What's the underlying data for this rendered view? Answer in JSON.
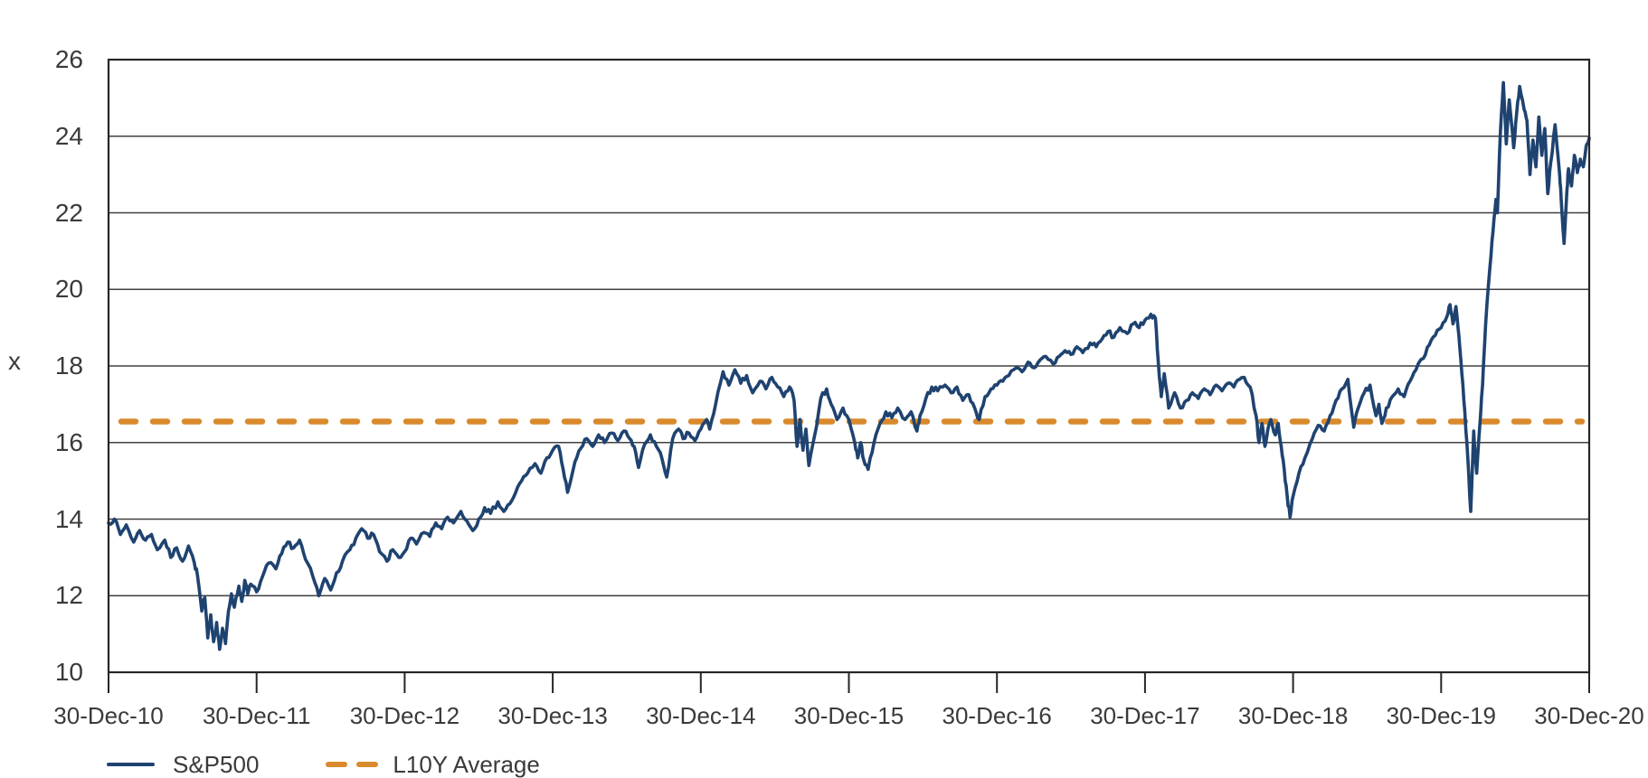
{
  "colors": {
    "series": "#1F4370",
    "average": "#D98A2D",
    "grid": "#404040",
    "border": "#262626",
    "text": "#3A3A3A",
    "background": "#FFFFFF"
  },
  "chart_data": {
    "type": "line",
    "title": "",
    "xlabel": "",
    "ylabel": "x",
    "ylim": [
      10,
      26
    ],
    "yticks": [
      10,
      12,
      14,
      16,
      18,
      20,
      22,
      24,
      26
    ],
    "x_domain": [
      0,
      10
    ],
    "x_unit": "years since 30-Dec-10",
    "xtick_labels": [
      "30-Dec-10",
      "30-Dec-11",
      "30-Dec-12",
      "30-Dec-13",
      "30-Dec-14",
      "30-Dec-15",
      "30-Dec-16",
      "30-Dec-17",
      "30-Dec-18",
      "30-Dec-19",
      "30-Dec-20"
    ],
    "grid": "horizontal",
    "legend_position": "bottom-left",
    "series": [
      {
        "name": "S&P500",
        "style": "solid",
        "color": "#1F4370",
        "points": [
          [
            0,
            13.9
          ],
          [
            0.04,
            14.0
          ],
          [
            0.08,
            13.6
          ],
          [
            0.12,
            13.85
          ],
          [
            0.17,
            13.4
          ],
          [
            0.21,
            13.7
          ],
          [
            0.25,
            13.45
          ],
          [
            0.29,
            13.6
          ],
          [
            0.33,
            13.2
          ],
          [
            0.38,
            13.45
          ],
          [
            0.42,
            13.0
          ],
          [
            0.46,
            13.25
          ],
          [
            0.5,
            12.9
          ],
          [
            0.54,
            13.3
          ],
          [
            0.58,
            12.85
          ],
          [
            0.6,
            12.55
          ],
          [
            0.63,
            11.6
          ],
          [
            0.65,
            11.95
          ],
          [
            0.67,
            10.9
          ],
          [
            0.69,
            11.5
          ],
          [
            0.71,
            10.8
          ],
          [
            0.73,
            11.3
          ],
          [
            0.75,
            10.6
          ],
          [
            0.77,
            11.15
          ],
          [
            0.79,
            10.75
          ],
          [
            0.81,
            11.6
          ],
          [
            0.83,
            12.05
          ],
          [
            0.85,
            11.7
          ],
          [
            0.88,
            12.25
          ],
          [
            0.9,
            11.85
          ],
          [
            0.92,
            12.4
          ],
          [
            0.94,
            12.05
          ],
          [
            0.96,
            12.3
          ],
          [
            1,
            12.1
          ],
          [
            1.04,
            12.5
          ],
          [
            1.08,
            12.85
          ],
          [
            1.13,
            12.7
          ],
          [
            1.17,
            13.1
          ],
          [
            1.21,
            13.4
          ],
          [
            1.25,
            13.25
          ],
          [
            1.29,
            13.45
          ],
          [
            1.33,
            12.95
          ],
          [
            1.38,
            12.5
          ],
          [
            1.42,
            12.0
          ],
          [
            1.46,
            12.45
          ],
          [
            1.5,
            12.15
          ],
          [
            1.54,
            12.6
          ],
          [
            1.58,
            12.9
          ],
          [
            1.63,
            13.2
          ],
          [
            1.67,
            13.5
          ],
          [
            1.71,
            13.75
          ],
          [
            1.75,
            13.5
          ],
          [
            1.79,
            13.6
          ],
          [
            1.83,
            13.15
          ],
          [
            1.88,
            12.9
          ],
          [
            1.92,
            13.2
          ],
          [
            1.96,
            13.0
          ],
          [
            2,
            13.15
          ],
          [
            2.04,
            13.5
          ],
          [
            2.08,
            13.35
          ],
          [
            2.13,
            13.65
          ],
          [
            2.17,
            13.55
          ],
          [
            2.21,
            13.9
          ],
          [
            2.25,
            13.75
          ],
          [
            2.29,
            14.05
          ],
          [
            2.33,
            13.9
          ],
          [
            2.38,
            14.2
          ],
          [
            2.42,
            13.95
          ],
          [
            2.46,
            13.7
          ],
          [
            2.5,
            14.0
          ],
          [
            2.54,
            14.3
          ],
          [
            2.58,
            14.15
          ],
          [
            2.63,
            14.45
          ],
          [
            2.67,
            14.2
          ],
          [
            2.71,
            14.4
          ],
          [
            2.75,
            14.7
          ],
          [
            2.79,
            15.0
          ],
          [
            2.83,
            15.2
          ],
          [
            2.88,
            15.45
          ],
          [
            2.92,
            15.2
          ],
          [
            2.96,
            15.6
          ],
          [
            3,
            15.8
          ],
          [
            3.04,
            15.9
          ],
          [
            3.07,
            15.3
          ],
          [
            3.1,
            14.7
          ],
          [
            3.15,
            15.5
          ],
          [
            3.19,
            15.85
          ],
          [
            3.23,
            16.1
          ],
          [
            3.27,
            15.9
          ],
          [
            3.31,
            16.2
          ],
          [
            3.35,
            16.0
          ],
          [
            3.4,
            16.25
          ],
          [
            3.44,
            16.05
          ],
          [
            3.48,
            16.3
          ],
          [
            3.52,
            16.1
          ],
          [
            3.55,
            15.9
          ],
          [
            3.58,
            15.35
          ],
          [
            3.62,
            15.95
          ],
          [
            3.66,
            16.2
          ],
          [
            3.7,
            15.9
          ],
          [
            3.74,
            15.55
          ],
          [
            3.77,
            15.1
          ],
          [
            3.81,
            16.1
          ],
          [
            3.85,
            16.35
          ],
          [
            3.88,
            16.1
          ],
          [
            3.92,
            16.25
          ],
          [
            3.96,
            16.05
          ],
          [
            4,
            16.35
          ],
          [
            4.04,
            16.6
          ],
          [
            4.06,
            16.35
          ],
          [
            4.1,
            17.0
          ],
          [
            4.15,
            17.85
          ],
          [
            4.19,
            17.5
          ],
          [
            4.23,
            17.9
          ],
          [
            4.27,
            17.55
          ],
          [
            4.31,
            17.75
          ],
          [
            4.35,
            17.3
          ],
          [
            4.4,
            17.6
          ],
          [
            4.44,
            17.4
          ],
          [
            4.48,
            17.7
          ],
          [
            4.52,
            17.45
          ],
          [
            4.56,
            17.2
          ],
          [
            4.6,
            17.45
          ],
          [
            4.63,
            17.1
          ],
          [
            4.65,
            15.9
          ],
          [
            4.67,
            16.6
          ],
          [
            4.69,
            15.8
          ],
          [
            4.71,
            16.35
          ],
          [
            4.73,
            15.4
          ],
          [
            4.77,
            16.2
          ],
          [
            4.81,
            17.15
          ],
          [
            4.85,
            17.4
          ],
          [
            4.88,
            17.0
          ],
          [
            4.92,
            16.6
          ],
          [
            4.96,
            16.9
          ],
          [
            5,
            16.6
          ],
          [
            5.04,
            16.0
          ],
          [
            5.06,
            15.6
          ],
          [
            5.08,
            16.0
          ],
          [
            5.1,
            15.55
          ],
          [
            5.13,
            15.3
          ],
          [
            5.17,
            16.0
          ],
          [
            5.21,
            16.5
          ],
          [
            5.25,
            16.8
          ],
          [
            5.29,
            16.65
          ],
          [
            5.33,
            16.9
          ],
          [
            5.38,
            16.6
          ],
          [
            5.42,
            16.8
          ],
          [
            5.46,
            16.3
          ],
          [
            5.48,
            16.7
          ],
          [
            5.52,
            17.15
          ],
          [
            5.56,
            17.45
          ],
          [
            5.6,
            17.35
          ],
          [
            5.65,
            17.5
          ],
          [
            5.69,
            17.3
          ],
          [
            5.73,
            17.45
          ],
          [
            5.77,
            17.1
          ],
          [
            5.81,
            17.25
          ],
          [
            5.85,
            16.9
          ],
          [
            5.88,
            16.6
          ],
          [
            5.92,
            17.2
          ],
          [
            5.96,
            17.4
          ],
          [
            6,
            17.5
          ],
          [
            6.04,
            17.6
          ],
          [
            6.08,
            17.75
          ],
          [
            6.13,
            17.95
          ],
          [
            6.17,
            17.85
          ],
          [
            6.21,
            18.1
          ],
          [
            6.25,
            17.95
          ],
          [
            6.29,
            18.15
          ],
          [
            6.33,
            18.25
          ],
          [
            6.38,
            18.05
          ],
          [
            6.42,
            18.25
          ],
          [
            6.46,
            18.4
          ],
          [
            6.5,
            18.3
          ],
          [
            6.54,
            18.5
          ],
          [
            6.58,
            18.35
          ],
          [
            6.63,
            18.6
          ],
          [
            6.67,
            18.5
          ],
          [
            6.71,
            18.7
          ],
          [
            6.75,
            18.9
          ],
          [
            6.79,
            18.75
          ],
          [
            6.83,
            19.0
          ],
          [
            6.88,
            18.85
          ],
          [
            6.92,
            19.1
          ],
          [
            6.96,
            19.0
          ],
          [
            7,
            19.2
          ],
          [
            7.04,
            19.35
          ],
          [
            7.07,
            19.25
          ],
          [
            7.09,
            18.1
          ],
          [
            7.11,
            17.2
          ],
          [
            7.13,
            17.8
          ],
          [
            7.16,
            16.9
          ],
          [
            7.2,
            17.3
          ],
          [
            7.24,
            16.9
          ],
          [
            7.28,
            17.1
          ],
          [
            7.32,
            17.3
          ],
          [
            7.36,
            17.15
          ],
          [
            7.4,
            17.4
          ],
          [
            7.44,
            17.25
          ],
          [
            7.48,
            17.5
          ],
          [
            7.52,
            17.35
          ],
          [
            7.56,
            17.55
          ],
          [
            7.6,
            17.45
          ],
          [
            7.64,
            17.65
          ],
          [
            7.67,
            17.7
          ],
          [
            7.71,
            17.45
          ],
          [
            7.75,
            16.7
          ],
          [
            7.77,
            16.0
          ],
          [
            7.79,
            16.5
          ],
          [
            7.81,
            15.9
          ],
          [
            7.83,
            16.35
          ],
          [
            7.85,
            16.6
          ],
          [
            7.88,
            16.2
          ],
          [
            7.9,
            16.5
          ],
          [
            7.92,
            15.9
          ],
          [
            7.94,
            15.3
          ],
          [
            7.96,
            14.6
          ],
          [
            7.98,
            14.05
          ],
          [
            8,
            14.6
          ],
          [
            8.04,
            15.2
          ],
          [
            8.08,
            15.6
          ],
          [
            8.13,
            16.1
          ],
          [
            8.17,
            16.45
          ],
          [
            8.21,
            16.3
          ],
          [
            8.25,
            16.7
          ],
          [
            8.29,
            17.1
          ],
          [
            8.33,
            17.4
          ],
          [
            8.37,
            17.65
          ],
          [
            8.41,
            16.4
          ],
          [
            8.44,
            16.9
          ],
          [
            8.48,
            17.3
          ],
          [
            8.52,
            17.5
          ],
          [
            8.56,
            16.7
          ],
          [
            8.58,
            17.0
          ],
          [
            8.6,
            16.5
          ],
          [
            8.63,
            16.9
          ],
          [
            8.67,
            17.2
          ],
          [
            8.71,
            17.4
          ],
          [
            8.75,
            17.2
          ],
          [
            8.79,
            17.6
          ],
          [
            8.83,
            17.9
          ],
          [
            8.88,
            18.2
          ],
          [
            8.92,
            18.55
          ],
          [
            8.96,
            18.8
          ],
          [
            9,
            19.0
          ],
          [
            9.04,
            19.3
          ],
          [
            9.06,
            19.6
          ],
          [
            9.08,
            19.1
          ],
          [
            9.1,
            19.55
          ],
          [
            9.12,
            18.8
          ],
          [
            9.14,
            17.8
          ],
          [
            9.16,
            16.8
          ],
          [
            9.18,
            15.6
          ],
          [
            9.2,
            14.2
          ],
          [
            9.22,
            16.3
          ],
          [
            9.23,
            15.6
          ],
          [
            9.24,
            15.2
          ],
          [
            9.26,
            16.4
          ],
          [
            9.28,
            17.5
          ],
          [
            9.3,
            19.05
          ],
          [
            9.33,
            20.6
          ],
          [
            9.35,
            21.5
          ],
          [
            9.37,
            22.35
          ],
          [
            9.38,
            22.0
          ],
          [
            9.4,
            24.1
          ],
          [
            9.42,
            25.4
          ],
          [
            9.44,
            23.8
          ],
          [
            9.46,
            24.95
          ],
          [
            9.49,
            23.7
          ],
          [
            9.51,
            24.6
          ],
          [
            9.53,
            25.3
          ],
          [
            9.56,
            24.7
          ],
          [
            9.58,
            24.4
          ],
          [
            9.6,
            23.0
          ],
          [
            9.62,
            23.9
          ],
          [
            9.64,
            23.2
          ],
          [
            9.66,
            24.5
          ],
          [
            9.68,
            23.5
          ],
          [
            9.7,
            24.2
          ],
          [
            9.72,
            22.5
          ],
          [
            9.74,
            23.3
          ],
          [
            9.77,
            24.3
          ],
          [
            9.8,
            23.0
          ],
          [
            9.81,
            22.4
          ],
          [
            9.83,
            21.2
          ],
          [
            9.85,
            22.6
          ],
          [
            9.86,
            23.15
          ],
          [
            9.88,
            22.7
          ],
          [
            9.9,
            23.5
          ],
          [
            9.92,
            23.05
          ],
          [
            9.94,
            23.4
          ],
          [
            9.96,
            23.2
          ],
          [
            9.98,
            23.75
          ],
          [
            10,
            23.95
          ]
        ]
      },
      {
        "name": "L10Y Average",
        "style": "dashed",
        "type": "hline",
        "color": "#D98A2D",
        "value": 16.55
      }
    ]
  }
}
